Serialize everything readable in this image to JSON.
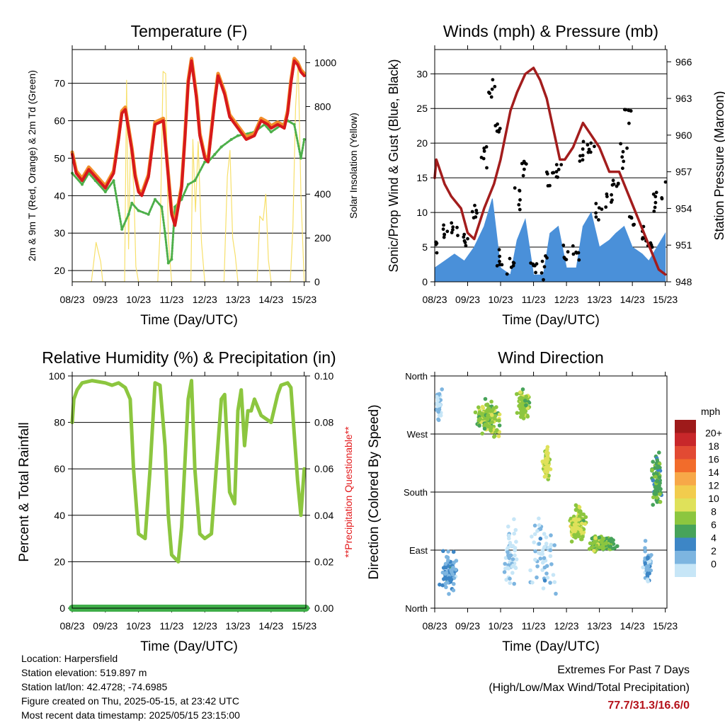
{
  "footer": {
    "location": "Location: Harpersfield",
    "elevation": "Station elevation: 519.897 m",
    "latlon": "Station lat/lon: 42.4728; -74.6985",
    "created": "Figure created on Thu, 2025-05-15, at 23:42 UTC",
    "recent": "Most recent data timestamp: 2025/05/15 23:15:00",
    "extremes_title": "Extremes For Past 7 Days",
    "extremes_sub": "(High/Low/Max Wind/Total Precipitation)",
    "extremes_value": "77.7/31.3/16.6/0"
  },
  "colors": {
    "temp2m": "#d7191c",
    "temp9m": "#f28e2b",
    "dewpoint": "#4daf4a",
    "solar": "#f7e06b",
    "wind": "#4a90d9",
    "gust": "#000000",
    "pressure": "#a31d1d",
    "rh": "#8cc63f",
    "precip": "#3fae49",
    "precip_note": "#e31a1c"
  },
  "chart_data": [
    {
      "type": "line",
      "title": "Temperature (F)",
      "xlabel": "Time (Day/UTC)",
      "ylabel": "2m & 9m T (Red, Orange) & 2m Td (Green)",
      "ylabel_right": "Solar Insolation (Yellow)",
      "x_ticks": [
        "08/23",
        "09/23",
        "10/23",
        "11/23",
        "12/23",
        "13/23",
        "14/23",
        "15/23"
      ],
      "y_ticks": [
        20,
        30,
        40,
        50,
        60,
        70
      ],
      "y2_ticks": [
        0,
        200,
        400,
        800,
        1000
      ],
      "ylim": [
        17,
        79
      ],
      "y2lim": [
        0,
        1060
      ],
      "xlim": [
        0,
        7.05
      ],
      "series": [
        {
          "key": "temp",
          "x": [
            0,
            0.12,
            0.3,
            0.5,
            0.7,
            1.0,
            1.25,
            1.4,
            1.5,
            1.6,
            1.8,
            1.9,
            2.0,
            2.1,
            2.3,
            2.5,
            2.75,
            2.9,
            3.0,
            3.1,
            3.3,
            3.4,
            3.5,
            3.6,
            3.75,
            3.85,
            4.0,
            4.1,
            4.3,
            4.4,
            4.6,
            4.75,
            5.0,
            5.25,
            5.5,
            5.7,
            5.9,
            6.0,
            6.2,
            6.4,
            6.5,
            6.6,
            6.7,
            6.8,
            6.9,
            7.0
          ],
          "y": [
            51,
            46,
            44,
            47,
            45,
            42,
            46,
            55,
            62,
            63,
            52,
            45,
            41,
            40,
            45,
            59,
            60,
            45,
            35,
            32,
            42,
            55,
            70,
            76,
            66,
            56,
            50,
            49,
            65,
            72,
            67,
            61,
            58,
            55,
            56,
            60,
            59,
            58,
            59,
            58,
            62,
            70,
            76,
            75,
            73,
            72
          ]
        },
        {
          "key": "dewpoint",
          "x": [
            0,
            0.3,
            0.5,
            0.7,
            1.0,
            1.25,
            1.5,
            1.7,
            1.8,
            2.0,
            2.3,
            2.5,
            2.7,
            2.8,
            2.9,
            3.0,
            3.1,
            3.3,
            3.5,
            3.7,
            4.0,
            4.1,
            4.3,
            4.5,
            4.8,
            5.0,
            5.5,
            5.8,
            6.0,
            6.5,
            6.7,
            6.9,
            7.0
          ],
          "y": [
            46,
            43,
            46,
            44,
            41,
            44,
            31,
            35,
            38,
            36,
            35,
            39,
            37,
            30,
            22,
            23,
            37,
            39,
            43,
            44,
            49,
            49,
            51,
            53,
            55,
            56,
            57,
            59,
            57,
            60,
            59,
            50,
            55
          ]
        },
        {
          "key": "solar",
          "x": [
            0,
            0.58,
            0.72,
            0.86,
            0.92,
            1.0,
            1.58,
            1.64,
            1.7,
            1.76,
            1.86,
            1.92,
            2.0,
            2.58,
            2.66,
            2.74,
            2.82,
            2.9,
            3.0,
            3.58,
            3.64,
            3.72,
            3.8,
            3.9,
            4.0,
            4.58,
            4.68,
            4.76,
            4.84,
            4.92,
            5.0,
            5.58,
            5.66,
            5.76,
            5.84,
            5.92,
            6.0,
            6.58,
            6.66,
            6.74,
            6.82,
            6.9,
            7.0
          ],
          "y": [
            0,
            0,
            180,
            90,
            0,
            0,
            0,
            920,
            150,
            650,
            420,
            70,
            0,
            0,
            260,
            960,
            950,
            200,
            0,
            0,
            650,
            320,
            640,
            180,
            0,
            0,
            480,
            600,
            200,
            120,
            0,
            0,
            300,
            280,
            400,
            100,
            0,
            0,
            250,
            800,
            1000,
            400,
            0
          ]
        }
      ]
    },
    {
      "type": "line",
      "title": "Winds (mph) & Pressure (mb)",
      "xlabel": "Time (Day/UTC)",
      "ylabel": "Sonic/Prop Wind & Gust (Blue, Black)",
      "ylabel_right": "Station Pressure (Maroon)",
      "x_ticks": [
        "08/23",
        "09/23",
        "10/23",
        "11/23",
        "12/23",
        "13/23",
        "14/23",
        "15/23"
      ],
      "y_ticks": [
        0,
        5,
        10,
        15,
        20,
        25,
        30
      ],
      "y2_ticks": [
        948,
        951,
        954,
        957,
        960,
        963,
        966
      ],
      "ylim": [
        0,
        33.5
      ],
      "y2lim": [
        948,
        967
      ],
      "xlim": [
        0,
        7.05
      ],
      "series": [
        {
          "key": "wind",
          "x": [
            0,
            0.3,
            0.6,
            0.9,
            1.2,
            1.5,
            1.75,
            2.0,
            2.3,
            2.5,
            2.75,
            3.0,
            3.3,
            3.5,
            3.75,
            4.0,
            4.3,
            4.5,
            4.75,
            5.0,
            5.3,
            5.5,
            5.75,
            6.0,
            6.3,
            6.5,
            6.75,
            7.0
          ],
          "y": [
            2,
            3,
            4,
            3,
            5,
            8,
            12,
            2,
            1,
            6,
            9,
            1,
            1,
            7,
            8,
            2,
            2,
            8,
            10,
            5,
            6,
            7,
            8,
            5,
            4,
            3,
            5,
            7
          ]
        },
        {
          "key": "gust",
          "x": [
            0,
            0.3,
            0.6,
            0.9,
            1.2,
            1.5,
            1.75,
            1.9,
            2.0,
            2.3,
            2.5,
            2.75,
            3.0,
            3.3,
            3.5,
            3.75,
            4.0,
            4.3,
            4.5,
            4.75,
            5.0,
            5.3,
            5.5,
            5.75,
            5.85,
            6.0,
            6.3,
            6.5,
            6.75,
            7.0
          ],
          "y": [
            5,
            7,
            8,
            6,
            10,
            18,
            28,
            22,
            3,
            2,
            12,
            17,
            2,
            2,
            15,
            17,
            4,
            4,
            18,
            19,
            10,
            12,
            14,
            18,
            24,
            8,
            7,
            5,
            11,
            13
          ]
        },
        {
          "key": "pressure",
          "x": [
            0,
            0.05,
            0.3,
            0.5,
            0.8,
            1.0,
            1.2,
            1.5,
            1.8,
            2.0,
            2.3,
            2.5,
            2.75,
            3.0,
            3.2,
            3.4,
            3.6,
            3.8,
            3.95,
            4.2,
            4.5,
            4.75,
            5.0,
            5.3,
            5.6,
            5.9,
            6.2,
            6.5,
            6.8,
            7.0
          ],
          "y": [
            956.5,
            958,
            956,
            955,
            954,
            952,
            951.5,
            954,
            956,
            958,
            962,
            963.5,
            965,
            965.5,
            964.5,
            963,
            960.5,
            958,
            958,
            959,
            961,
            960,
            959,
            957,
            957,
            955,
            953,
            951,
            949,
            948.6
          ]
        }
      ]
    },
    {
      "type": "line",
      "title": "Relative Humidity (%) & Precipitation (in)",
      "xlabel": "Time (Day/UTC)",
      "ylabel": "Percent & Total Rainfall",
      "ylabel_right": "**Precipitation Questionable**",
      "x_ticks": [
        "08/23",
        "09/23",
        "10/23",
        "11/23",
        "12/23",
        "13/23",
        "14/23",
        "15/23"
      ],
      "y_ticks": [
        0,
        20,
        40,
        60,
        80,
        100
      ],
      "y2_ticks": [
        "0.00",
        "0.02",
        "0.04",
        "0.06",
        "0.08",
        "0.10"
      ],
      "ylim": [
        0,
        100
      ],
      "y2lim": [
        0,
        0.1
      ],
      "xlim": [
        0,
        7.05
      ],
      "series": [
        {
          "key": "rh",
          "x": [
            0,
            0.05,
            0.15,
            0.3,
            0.6,
            1.0,
            1.2,
            1.4,
            1.6,
            1.75,
            1.85,
            2.0,
            2.2,
            2.35,
            2.5,
            2.65,
            2.8,
            2.9,
            3.0,
            3.2,
            3.3,
            3.5,
            3.6,
            3.7,
            3.85,
            4.0,
            4.2,
            4.5,
            4.6,
            4.75,
            4.9,
            5.0,
            5.1,
            5.2,
            5.3,
            5.4,
            5.5,
            5.7,
            6.0,
            6.2,
            6.3,
            6.5,
            6.6,
            6.7,
            6.8,
            6.9,
            7.0
          ],
          "y": [
            80,
            90,
            94,
            97,
            98,
            97,
            96,
            97,
            95,
            90,
            60,
            32,
            30,
            60,
            97,
            96,
            70,
            40,
            23,
            20,
            35,
            90,
            98,
            60,
            32,
            30,
            32,
            90,
            92,
            50,
            45,
            85,
            94,
            70,
            85,
            85,
            90,
            83,
            80,
            92,
            96,
            97,
            95,
            75,
            55,
            40,
            60
          ]
        },
        {
          "key": "precip",
          "x": [
            0,
            7.05
          ],
          "y": [
            0,
            0
          ]
        }
      ]
    },
    {
      "type": "scatter",
      "title": "Wind Direction",
      "xlabel": "Time (Day/UTC)",
      "ylabel": "Direction (Colored By Speed)",
      "x_ticks": [
        "08/23",
        "09/23",
        "10/23",
        "11/23",
        "12/23",
        "13/23",
        "14/23",
        "15/23"
      ],
      "y_ticks": [
        "North",
        "East",
        "South",
        "West",
        "North"
      ],
      "ylim": [
        0,
        360
      ],
      "xlim": [
        0,
        7.05
      ],
      "legend_title": "mph",
      "legend_labels": [
        "20+",
        "18",
        "16",
        "14",
        "12",
        "10",
        "8",
        "6",
        "4",
        "2",
        "0"
      ],
      "legend_colors": [
        "#9e1a1a",
        "#c8272a",
        "#e24a33",
        "#f26c2b",
        "#f7a848",
        "#f2cc4d",
        "#dfe15a",
        "#8cc63f",
        "#47a35a",
        "#3d86c6",
        "#7db5e0",
        "#c7e6f7"
      ],
      "series": [
        {
          "key": "cluster1",
          "x_center": 0.45,
          "x_spread": 0.35,
          "y_center": 60,
          "y_spread": 40,
          "speed": 3,
          "count": 80
        },
        {
          "key": "cluster2",
          "x_center": 0.12,
          "x_spread": 0.12,
          "y_center": 320,
          "y_spread": 40,
          "speed": 1,
          "count": 30
        },
        {
          "key": "cluster3",
          "x_center": 1.6,
          "x_spread": 0.5,
          "y_center": 295,
          "y_spread": 35,
          "speed": 8,
          "count": 140
        },
        {
          "key": "cluster4",
          "x_center": 2.7,
          "x_spread": 0.25,
          "y_center": 315,
          "y_spread": 30,
          "speed": 8,
          "count": 90
        },
        {
          "key": "cluster5",
          "x_center": 2.3,
          "x_spread": 0.25,
          "y_center": 80,
          "y_spread": 70,
          "speed": 1,
          "count": 50
        },
        {
          "key": "cluster6",
          "x_center": 3.4,
          "x_spread": 0.15,
          "y_center": 225,
          "y_spread": 30,
          "speed": 9,
          "count": 80
        },
        {
          "key": "cluster7",
          "x_center": 3.3,
          "x_spread": 0.6,
          "y_center": 80,
          "y_spread": 80,
          "speed": 1,
          "count": 60
        },
        {
          "key": "cluster8",
          "x_center": 4.35,
          "x_spread": 0.3,
          "y_center": 130,
          "y_spread": 35,
          "speed": 9,
          "count": 140
        },
        {
          "key": "cluster9",
          "x_center": 5.1,
          "x_spread": 0.55,
          "y_center": 100,
          "y_spread": 15,
          "speed": 7,
          "count": 170
        },
        {
          "key": "cluster10",
          "x_center": 6.75,
          "x_spread": 0.2,
          "y_center": 200,
          "y_spread": 50,
          "speed": 6,
          "count": 80
        },
        {
          "key": "cluster11",
          "x_center": 6.45,
          "x_spread": 0.2,
          "y_center": 70,
          "y_spread": 50,
          "speed": 2,
          "count": 40
        }
      ]
    }
  ]
}
